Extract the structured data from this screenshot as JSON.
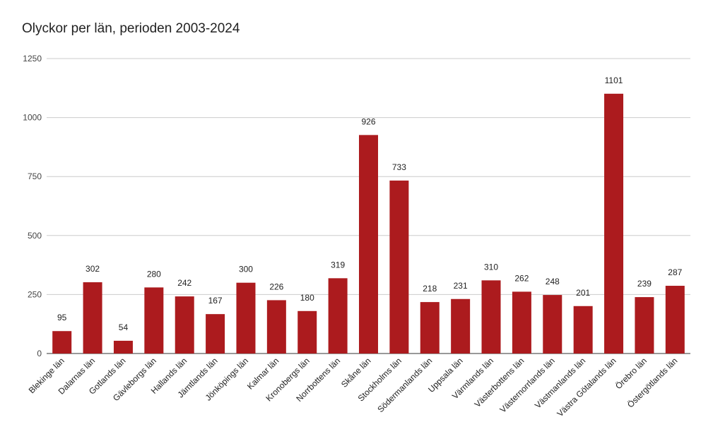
{
  "chart_data": {
    "type": "bar",
    "title": "Olyckor per län, perioden 2003-2024",
    "xlabel": "",
    "ylabel": "",
    "ylim": [
      0,
      1250
    ],
    "yticks": [
      0,
      250,
      500,
      750,
      1000,
      1250
    ],
    "grid": true,
    "legend": "none",
    "bar_color": "#ac1b1e",
    "categories": [
      "Blekinge län",
      "Dalarnas län",
      "Gotlands län",
      "Gävleborgs län",
      "Hallands län",
      "Jämtlands län",
      "Jönköpings län",
      "Kalmar län",
      "Kronobergs län",
      "Norrbottens län",
      "Skåne län",
      "Stockholms län",
      "Södermanlands län",
      "Uppsala län",
      "Värmlands län",
      "Västerbottens län",
      "Västernorrlands län",
      "Västmanlands län",
      "Västra Götalands län",
      "Örebro län",
      "Östergötlands län"
    ],
    "values": [
      95,
      302,
      54,
      280,
      242,
      167,
      300,
      226,
      180,
      319,
      926,
      733,
      218,
      231,
      310,
      262,
      248,
      201,
      1101,
      239,
      287
    ]
  }
}
